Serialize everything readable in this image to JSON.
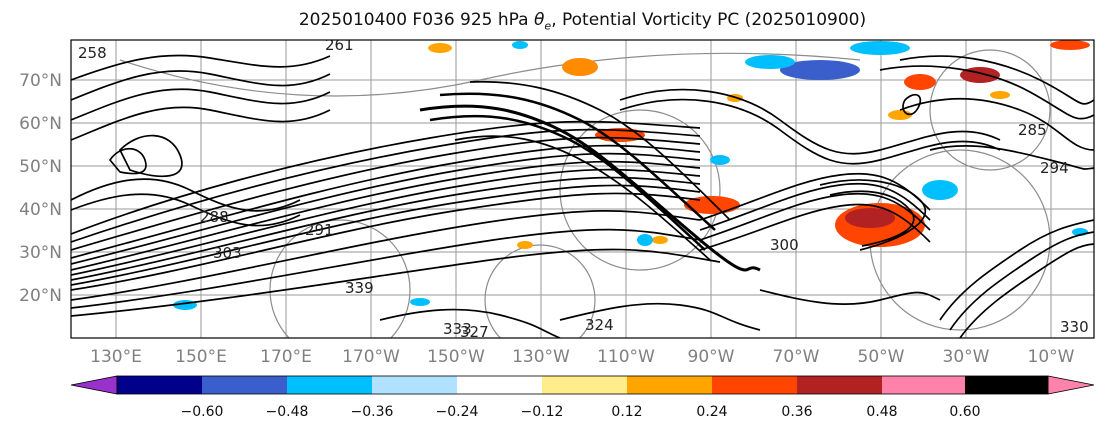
{
  "title": {
    "prefix": "2025010400 F036 925 hPa ",
    "theta": "θ",
    "theta_sub": "e",
    "suffix": ", Potential Vorticity PC (2025010900)"
  },
  "lat_labels": [
    "70°N",
    "60°N",
    "50°N",
    "40°N",
    "30°N",
    "20°N"
  ],
  "lon_labels": [
    "130°E",
    "150°E",
    "170°E",
    "170°W",
    "150°W",
    "130°W",
    "110°W",
    "90°W",
    "70°W",
    "50°W",
    "30°W",
    "10°W"
  ],
  "contour_labels": [
    "258",
    "261",
    "285",
    "294",
    "288",
    "291",
    "303",
    "300",
    "339",
    "333",
    "324",
    "330",
    "327"
  ],
  "colorbar": {
    "ticks": [
      "−0.60",
      "−0.48",
      "−0.36",
      "−0.24",
      "−0.12",
      "0.12",
      "0.24",
      "0.36",
      "0.48",
      "0.60"
    ],
    "colors": [
      "#9932CC",
      "#00008B",
      "#3A5FCD",
      "#00BFFF",
      "#B0E2FF",
      "#FFFFFF",
      "#FFEC8B",
      "#FFA500",
      "#FF4500",
      "#B22222",
      "#FF82AB"
    ]
  },
  "colors": {
    "contour": "#000000",
    "grid": "#909090",
    "label": "#808080"
  }
}
